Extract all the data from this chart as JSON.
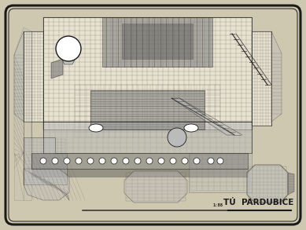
{
  "bg_outer": "#cfc8b0",
  "paper_color": "#e8e2d0",
  "border_color": "#111111",
  "line_color": "#1a1a1a",
  "grid_color": "#333333",
  "dark_gray": "#444444",
  "mid_gray": "#777777",
  "light_gray": "#999999",
  "very_light_gray": "#bbbbbb",
  "label_text": "TÚ  PARDUBICE",
  "label_small": "1:88",
  "label_fontsize": 7.5,
  "label_small_fontsize": 4.0,
  "figsize": [
    3.89,
    2.93
  ],
  "dpi": 100
}
